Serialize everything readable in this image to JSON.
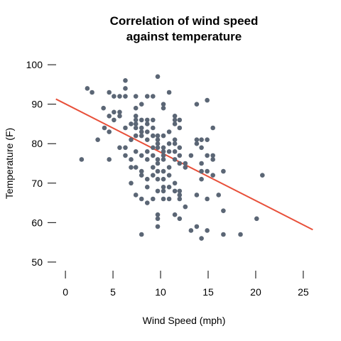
{
  "chart_data": {
    "type": "scatter",
    "title_line1": "Correlation of wind speed",
    "title_line2": "against temperature",
    "xlabel": "Wind Speed (mph)",
    "ylabel": "Temperature (F)",
    "xlim": [
      -1.5,
      26.5
    ],
    "ylim": [
      48,
      102
    ],
    "x_ticks": [
      0,
      5,
      10,
      15,
      20,
      25
    ],
    "y_ticks": [
      50,
      60,
      70,
      80,
      90,
      100
    ],
    "grid": false,
    "point_color": "#5b6675",
    "line_color": "#e8503a",
    "trend_line": {
      "x": [
        -1,
        26
      ],
      "y": [
        91.3,
        58.2
      ]
    },
    "points": [
      [
        1.7,
        76
      ],
      [
        2.3,
        94
      ],
      [
        2.8,
        93
      ],
      [
        3.4,
        81
      ],
      [
        4,
        89
      ],
      [
        4.1,
        84
      ],
      [
        4.6,
        76
      ],
      [
        4.6,
        83
      ],
      [
        4.6,
        87
      ],
      [
        4.6,
        93
      ],
      [
        5.1,
        86
      ],
      [
        5.1,
        88
      ],
      [
        5.1,
        92
      ],
      [
        5.7,
        79
      ],
      [
        5.7,
        87
      ],
      [
        5.7,
        88
      ],
      [
        5.7,
        92
      ],
      [
        6.3,
        96
      ],
      [
        6.3,
        94
      ],
      [
        6.3,
        92
      ],
      [
        6.3,
        84
      ],
      [
        6.3,
        79
      ],
      [
        6.3,
        77
      ],
      [
        6.9,
        85
      ],
      [
        6.9,
        81
      ],
      [
        6.9,
        76
      ],
      [
        6.9,
        74
      ],
      [
        6.9,
        70
      ],
      [
        7.4,
        67
      ],
      [
        7.4,
        74
      ],
      [
        7.4,
        78
      ],
      [
        7.4,
        82
      ],
      [
        7.4,
        84
      ],
      [
        7.4,
        85
      ],
      [
        7.4,
        86
      ],
      [
        7.4,
        87
      ],
      [
        7.4,
        89
      ],
      [
        7.4,
        92
      ],
      [
        8,
        57
      ],
      [
        8,
        66
      ],
      [
        8,
        72
      ],
      [
        8,
        73
      ],
      [
        8,
        77
      ],
      [
        8,
        82
      ],
      [
        8,
        83
      ],
      [
        8,
        84
      ],
      [
        8,
        86
      ],
      [
        8,
        90
      ],
      [
        8.6,
        65
      ],
      [
        8.6,
        69
      ],
      [
        8.6,
        71
      ],
      [
        8.6,
        76
      ],
      [
        8.6,
        78
      ],
      [
        8.6,
        81
      ],
      [
        8.6,
        83
      ],
      [
        8.6,
        85
      ],
      [
        8.6,
        86
      ],
      [
        8.6,
        92
      ],
      [
        9.2,
        66
      ],
      [
        9.2,
        72
      ],
      [
        9.2,
        74
      ],
      [
        9.2,
        77
      ],
      [
        9.2,
        79
      ],
      [
        9.2,
        82
      ],
      [
        9.2,
        84
      ],
      [
        9.2,
        86
      ],
      [
        9.2,
        92
      ],
      [
        9.7,
        59
      ],
      [
        9.7,
        61
      ],
      [
        9.7,
        62
      ],
      [
        9.7,
        68
      ],
      [
        9.7,
        71
      ],
      [
        9.7,
        73
      ],
      [
        9.7,
        75
      ],
      [
        9.7,
        76
      ],
      [
        9.7,
        79
      ],
      [
        9.7,
        80
      ],
      [
        9.7,
        81
      ],
      [
        9.7,
        82
      ],
      [
        9.7,
        97
      ],
      [
        10.3,
        66
      ],
      [
        10.3,
        68
      ],
      [
        10.3,
        69
      ],
      [
        10.3,
        71
      ],
      [
        10.3,
        73
      ],
      [
        10.3,
        76
      ],
      [
        10.3,
        77
      ],
      [
        10.3,
        78
      ],
      [
        10.3,
        79
      ],
      [
        10.3,
        82
      ],
      [
        10.3,
        89
      ],
      [
        10.3,
        90
      ],
      [
        10.9,
        66
      ],
      [
        10.9,
        69
      ],
      [
        10.9,
        72
      ],
      [
        10.9,
        74
      ],
      [
        10.9,
        78
      ],
      [
        10.9,
        80
      ],
      [
        10.9,
        83
      ],
      [
        10.9,
        93
      ],
      [
        11.5,
        62
      ],
      [
        11.5,
        68
      ],
      [
        11.5,
        70
      ],
      [
        11.5,
        76
      ],
      [
        11.5,
        78
      ],
      [
        11.5,
        80
      ],
      [
        11.5,
        81
      ],
      [
        11.5,
        85
      ],
      [
        11.5,
        86
      ],
      [
        11.5,
        87
      ],
      [
        12,
        61
      ],
      [
        12,
        66
      ],
      [
        12,
        67
      ],
      [
        12,
        68
      ],
      [
        12,
        75
      ],
      [
        12,
        77
      ],
      [
        12,
        79
      ],
      [
        12,
        84
      ],
      [
        12,
        86
      ],
      [
        12.6,
        64
      ],
      [
        12.6,
        74
      ],
      [
        12.6,
        75
      ],
      [
        13.2,
        58
      ],
      [
        13.2,
        77
      ],
      [
        13.8,
        59
      ],
      [
        13.8,
        67
      ],
      [
        13.8,
        80
      ],
      [
        13.8,
        81
      ],
      [
        13.8,
        90
      ],
      [
        14.3,
        56
      ],
      [
        14.3,
        71
      ],
      [
        14.3,
        73
      ],
      [
        14.3,
        75
      ],
      [
        14.3,
        79
      ],
      [
        14.3,
        81
      ],
      [
        14.9,
        58
      ],
      [
        14.9,
        66
      ],
      [
        14.9,
        73
      ],
      [
        14.9,
        77
      ],
      [
        14.9,
        81
      ],
      [
        14.9,
        91
      ],
      [
        15.5,
        72
      ],
      [
        15.5,
        76
      ],
      [
        15.5,
        77
      ],
      [
        15.5,
        84
      ],
      [
        16.1,
        67
      ],
      [
        16.6,
        57
      ],
      [
        16.6,
        63
      ],
      [
        16.6,
        73
      ],
      [
        18.4,
        57
      ],
      [
        20.1,
        61
      ],
      [
        20.7,
        72
      ]
    ]
  }
}
